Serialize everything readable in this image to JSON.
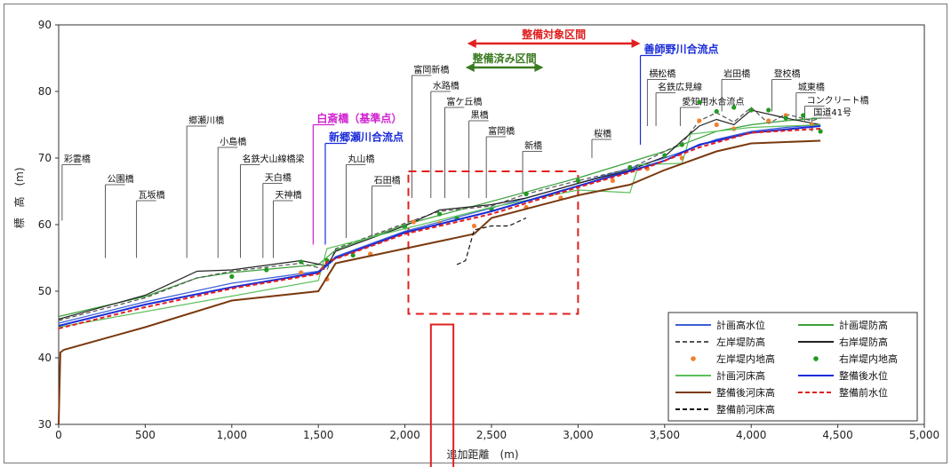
{
  "chart_data": {
    "type": "line",
    "xlabel": "追加距離　(m)",
    "ylabel": "標　高　(m)",
    "xlim": [
      0,
      5000
    ],
    "ylim": [
      30,
      90
    ],
    "x_ticks": [
      "0",
      "500",
      "1,000",
      "1,500",
      "2,000",
      "2,500",
      "3,000",
      "3,500",
      "4,000",
      "4,500",
      "5,000"
    ],
    "y_ticks": [
      "30",
      "40",
      "50",
      "60",
      "70",
      "80",
      "90"
    ],
    "grid": false,
    "legend_position": "bottom-right",
    "series": [
      {
        "name": "計画高水位",
        "color": "#3a5fd6",
        "style": "solid",
        "x": [
          0,
          500,
          1000,
          1500,
          1600,
          2000,
          2500,
          3000,
          3500,
          3800,
          4000,
          4200,
          4400
        ],
        "y": [
          45.2,
          48.4,
          51.2,
          53.0,
          55.2,
          59.0,
          62.5,
          66.2,
          70.0,
          72.8,
          74.0,
          74.6,
          75.0
        ]
      },
      {
        "name": "計画堤防高",
        "color": "#3aa03a",
        "style": "solid",
        "x": [
          0,
          500,
          800,
          1000,
          1500,
          1600,
          2000,
          2500,
          3000,
          3500,
          3800,
          4000,
          4200,
          4400
        ],
        "y": [
          46.2,
          49.2,
          52.0,
          52.8,
          54.0,
          56.2,
          60.0,
          63.5,
          67.0,
          71.0,
          74.0,
          75.0,
          75.6,
          76.0
        ]
      },
      {
        "name": "左岸堤防高",
        "color": "#555555",
        "style": "dashed",
        "x": [
          0,
          500,
          800,
          1000,
          1400,
          1550,
          1600,
          2000,
          2200,
          2500,
          2700,
          3000,
          3300,
          3500,
          3600,
          3700,
          3800,
          3900,
          4000,
          4100,
          4200,
          4350,
          4400
        ],
        "y": [
          45.6,
          49.0,
          52.0,
          53.0,
          54.2,
          53.2,
          56.4,
          60.2,
          62.0,
          62.8,
          64.6,
          66.6,
          68.4,
          71.0,
          72.2,
          75.6,
          76.8,
          75.4,
          77.6,
          75.2,
          76.6,
          75.6,
          76.0
        ]
      },
      {
        "name": "右岸堤防高",
        "color": "#222222",
        "style": "solid",
        "x": [
          0,
          500,
          800,
          1000,
          1400,
          1550,
          1600,
          2000,
          2200,
          2500,
          2700,
          3000,
          3300,
          3500,
          3600,
          3700,
          3800,
          3900,
          4000,
          4200,
          4400
        ],
        "y": [
          45.8,
          49.4,
          53.0,
          53.2,
          54.6,
          53.8,
          56.0,
          59.8,
          62.2,
          63.0,
          64.0,
          66.2,
          68.2,
          70.2,
          72.6,
          74.8,
          75.8,
          75.0,
          77.2,
          76.0,
          75.0
        ]
      },
      {
        "name": "左岸堤内地高",
        "color": "#f08030",
        "style": "dots",
        "x": [
          1400,
          1550,
          1800,
          2050,
          2200,
          2400,
          2500,
          2700,
          2900,
          3200,
          3400,
          3600,
          3700,
          3800,
          3900,
          4000,
          4100,
          4200,
          4350
        ],
        "y": [
          52.8,
          51.8,
          55.6,
          60.4,
          60.2,
          59.8,
          62.2,
          62.6,
          64.0,
          66.6,
          68.4,
          70.0,
          75.6,
          75.0,
          74.4,
          77.2,
          75.6,
          76.4,
          75.0
        ]
      },
      {
        "name": "右岸堤内地高",
        "color": "#229922",
        "style": "dots",
        "x": [
          1000,
          1200,
          1400,
          1550,
          1700,
          2000,
          2200,
          2300,
          2500,
          2700,
          3000,
          3300,
          3500,
          3600,
          3700,
          3800,
          3900,
          4000,
          4100,
          4200,
          4300,
          4400
        ],
        "y": [
          52.2,
          53.2,
          54.4,
          54.6,
          55.4,
          59.6,
          61.6,
          61.0,
          62.4,
          64.6,
          66.6,
          68.6,
          70.4,
          72.0,
          78.4,
          77.0,
          77.6,
          77.2,
          77.2,
          76.0,
          76.4,
          74.0
        ]
      },
      {
        "name": "計画河床高",
        "color": "#5cc05c",
        "style": "solid",
        "x": [
          0,
          1500,
          1550,
          2000,
          2500,
          3000,
          3300,
          3350,
          3600,
          3650,
          4000,
          4400
        ],
        "y": [
          44.6,
          51.6,
          56.4,
          59.4,
          62.6,
          65.2,
          64.8,
          69.0,
          69.2,
          73.6,
          74.6,
          75.0
        ]
      },
      {
        "name": "整備後水位",
        "color": "#1a2cd8",
        "style": "solid",
        "x": [
          0,
          500,
          1000,
          1500,
          1600,
          2000,
          2500,
          3000,
          3400,
          3500,
          3700,
          4000,
          4400
        ],
        "y": [
          44.8,
          48.0,
          50.6,
          52.8,
          55.0,
          58.8,
          62.0,
          65.8,
          68.8,
          69.6,
          72.0,
          73.8,
          74.8
        ]
      },
      {
        "name": "整備後河床高",
        "color": "#7a3a10",
        "style": "solid",
        "x": [
          0,
          10,
          30,
          500,
          1000,
          1500,
          1600,
          2000,
          2400,
          2500,
          3000,
          3300,
          3500,
          3800,
          4000,
          4400
        ],
        "y": [
          30,
          40.8,
          41.2,
          44.6,
          48.6,
          50.0,
          54.2,
          56.4,
          58.6,
          61.0,
          64.4,
          66.0,
          68.2,
          71.0,
          72.2,
          72.6
        ]
      },
      {
        "name": "整備前水位",
        "color": "#e02020",
        "style": "dashed",
        "x": [
          0,
          500,
          1000,
          1500,
          1550,
          2000,
          2500,
          3000,
          3400,
          3700,
          4000,
          4400
        ],
        "y": [
          44.4,
          47.6,
          50.4,
          52.6,
          54.4,
          58.6,
          61.6,
          65.6,
          68.6,
          71.6,
          73.8,
          74.4
        ]
      },
      {
        "name": "整備前河床高",
        "color": "#111111",
        "style": "dashed",
        "x": [
          2300,
          2350,
          2400,
          2500,
          2600,
          2700
        ],
        "y": [
          54.0,
          54.6,
          59.2,
          59.8,
          59.8,
          61.0
        ]
      }
    ],
    "bridges": [
      {
        "name": "彩雲橋",
        "x": 20,
        "label_y": 69.0,
        "line_bottom": 60.6
      },
      {
        "name": "公園橋",
        "x": 270,
        "label_y": 66.0,
        "line_bottom": 55.0
      },
      {
        "name": "瓦坂橋",
        "x": 450,
        "label_y": 63.6,
        "line_bottom": 55.0
      },
      {
        "name": "郷瀬川橋",
        "x": 740,
        "label_y": 74.8,
        "line_bottom": 55.0
      },
      {
        "name": "小島橋",
        "x": 920,
        "label_y": 71.6,
        "line_bottom": 55.0
      },
      {
        "name": "名鉄犬山線橋梁",
        "x": 1050,
        "label_y": 69.0,
        "line_bottom": 55.0
      },
      {
        "name": "天白橋",
        "x": 1180,
        "label_y": 66.2,
        "line_bottom": 55.0
      },
      {
        "name": "天神橋",
        "x": 1240,
        "label_y": 63.6,
        "line_bottom": 55.0
      },
      {
        "name": "丸山橋",
        "x": 1660,
        "label_y": 69.0,
        "line_bottom": 58.0
      },
      {
        "name": "石田橋",
        "x": 1810,
        "label_y": 65.8,
        "line_bottom": 58.0
      },
      {
        "name": "富岡新橋",
        "x": 2040,
        "label_y": 82.4,
        "line_bottom": 64.0
      },
      {
        "name": "水路橋",
        "x": 2150,
        "label_y": 80.0,
        "line_bottom": 64.0
      },
      {
        "name": "富ケ丘橋",
        "x": 2230,
        "label_y": 77.6,
        "line_bottom": 64.0
      },
      {
        "name": "黒橋",
        "x": 2370,
        "label_y": 75.6,
        "line_bottom": 64.0
      },
      {
        "name": "富岡橋",
        "x": 2470,
        "label_y": 73.2,
        "line_bottom": 64.0
      },
      {
        "name": "新橋",
        "x": 2680,
        "label_y": 71.0,
        "line_bottom": 64.6
      },
      {
        "name": "桜橋",
        "x": 3080,
        "label_y": 72.8,
        "line_bottom": 70.0
      },
      {
        "name": "横松橋",
        "x": 3400,
        "label_y": 81.8,
        "line_bottom": 74.8
      },
      {
        "name": "名鉄広見線",
        "x": 3450,
        "label_y": 79.8,
        "line_bottom": 74.8
      },
      {
        "name": "愛知用水合流点",
        "x": 3590,
        "label_y": 77.6,
        "line_bottom": 74.8
      },
      {
        "name": "岩田橋",
        "x": 3830,
        "label_y": 81.8,
        "line_bottom": 77.0
      },
      {
        "name": "登校橋",
        "x": 4120,
        "label_y": 81.8,
        "line_bottom": 77.0
      },
      {
        "name": "城東橋",
        "x": 4260,
        "label_y": 79.8,
        "line_bottom": 75.6
      },
      {
        "name": "コンクリート橋",
        "x": 4310,
        "label_y": 77.8,
        "line_bottom": 75.6
      },
      {
        "name": "国道41号",
        "x": 4350,
        "label_y": 76.0,
        "line_bottom": 74.0
      }
    ],
    "annotations": {
      "reference_point": {
        "label": "白斎橋（基準点）",
        "color": "#d020d0",
        "x": 1470,
        "label_y": 75.0,
        "line_bottom": 57.0
      },
      "confluence_1": {
        "label": "新郷瀬川合流点",
        "color": "#1a2cd8",
        "x": 1540,
        "label_y": 72.2,
        "line_bottom": 57.0
      },
      "confluence_2": {
        "label": "善師野川合流点",
        "color": "#1a2cd8",
        "x": 3360,
        "label_y": 85.4,
        "line_bottom": 72.0
      },
      "target_section": {
        "label": "整備対象区間",
        "color": "#e02020",
        "x_start": 2360,
        "x_end": 3360,
        "y": 87.2
      },
      "completed_section": {
        "label": "整備済み区間",
        "color": "#3a7a20",
        "x_start": 2350,
        "x_end": 2800,
        "y": 83.6
      },
      "highlight_box": {
        "x_start": 2020,
        "x_end": 3000,
        "y_bottom": 46.6,
        "y_top": 68.0
      }
    }
  }
}
